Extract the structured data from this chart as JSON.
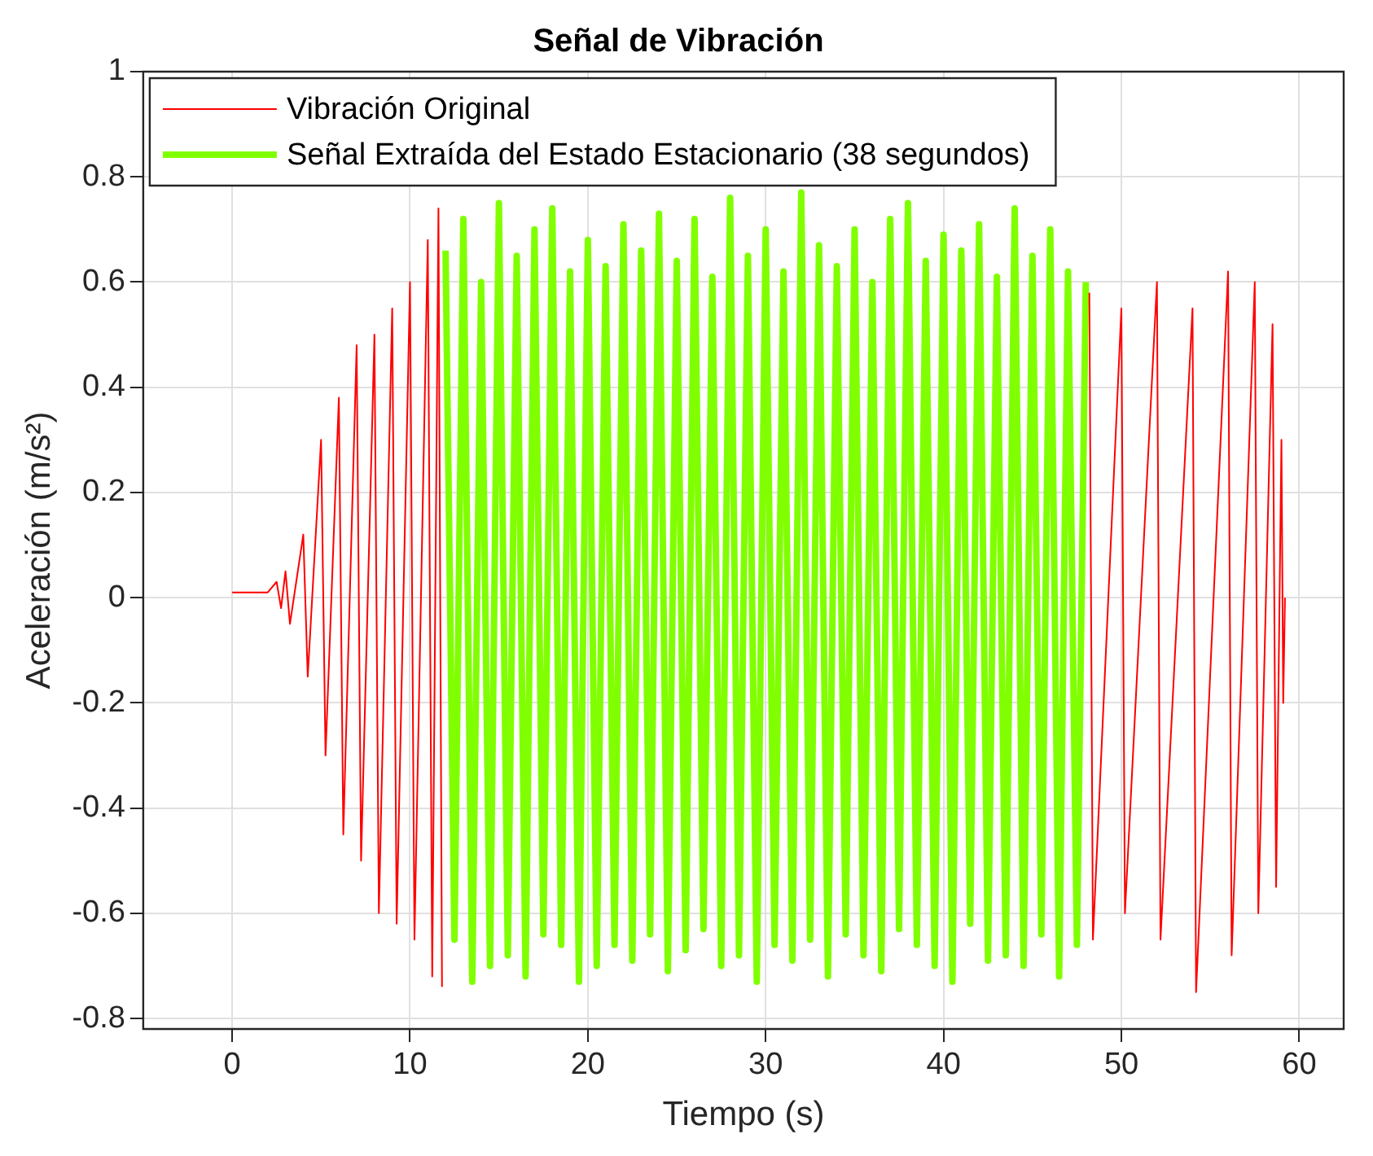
{
  "chart_data": {
    "type": "line",
    "title": "Señal de Vibración",
    "xlabel": "Tiempo (s)",
    "ylabel": "Aceleración (m/s²)",
    "xlim": [
      -5,
      62.5
    ],
    "xticks": [
      0,
      10,
      20,
      30,
      40,
      50,
      60
    ],
    "ylim": [
      -0.82,
      1
    ],
    "yticks": [
      -0.8,
      -0.6,
      -0.4,
      -0.2,
      0,
      0.2,
      0.4,
      0.6,
      0.8,
      1
    ],
    "grid": true,
    "legend": "top left",
    "marker": "none",
    "line_style": "solid",
    "series": [
      {
        "name": "Vibración Original",
        "color": "#ff0000",
        "x": [
          0,
          2,
          2.5,
          2.75,
          3,
          3.25,
          4,
          4.25,
          5,
          5.25,
          6,
          6.25,
          7,
          7.25,
          8,
          8.25,
          9,
          9.25,
          10,
          10.25,
          11,
          11.25,
          11.6,
          11.8,
          30,
          48.2,
          48.4,
          50,
          50.2,
          52,
          52.2,
          54,
          54.2,
          56,
          56.2,
          57.5,
          57.7,
          58.5,
          58.7,
          59,
          59.1,
          59.2
        ],
        "values": [
          0.01,
          0.01,
          0.03,
          -0.02,
          0.05,
          -0.05,
          0.12,
          -0.15,
          0.3,
          -0.3,
          0.38,
          -0.45,
          0.48,
          -0.5,
          0.5,
          -0.6,
          0.55,
          -0.62,
          0.6,
          -0.65,
          0.68,
          -0.72,
          0.74,
          -0.74,
          null,
          0.58,
          -0.65,
          0.55,
          -0.6,
          0.6,
          -0.65,
          0.55,
          -0.75,
          0.62,
          -0.68,
          0.6,
          -0.6,
          0.52,
          -0.55,
          0.3,
          -0.2,
          0
        ]
      },
      {
        "name": "Señal Extraída del Estado Estacionario (38 segundos)",
        "color": "#80ff00",
        "x": [
          12,
          12.5,
          13,
          13.5,
          14,
          14.5,
          15,
          15.5,
          16,
          16.5,
          17,
          17.5,
          18,
          18.5,
          19,
          19.5,
          20,
          20.5,
          21,
          21.5,
          22,
          22.5,
          23,
          23.5,
          24,
          24.5,
          25,
          25.5,
          26,
          26.5,
          27,
          27.5,
          28,
          28.5,
          29,
          29.5,
          30,
          30.5,
          31,
          31.5,
          32,
          32.5,
          33,
          33.5,
          34,
          34.5,
          35,
          35.5,
          36,
          36.5,
          37,
          37.5,
          38,
          38.5,
          39,
          39.5,
          40,
          40.5,
          41,
          41.5,
          42,
          42.5,
          43,
          43.5,
          44,
          44.5,
          45,
          45.5,
          46,
          46.5,
          47,
          47.5,
          48
        ],
        "values": [
          0.66,
          -0.65,
          0.72,
          -0.73,
          0.6,
          -0.7,
          0.75,
          -0.68,
          0.65,
          -0.72,
          0.7,
          -0.64,
          0.74,
          -0.66,
          0.62,
          -0.73,
          0.68,
          -0.7,
          0.63,
          -0.66,
          0.71,
          -0.69,
          0.66,
          -0.64,
          0.73,
          -0.71,
          0.64,
          -0.67,
          0.72,
          -0.63,
          0.61,
          -0.7,
          0.76,
          -0.68,
          0.65,
          -0.73,
          0.7,
          -0.66,
          0.62,
          -0.69,
          0.77,
          -0.65,
          0.67,
          -0.72,
          0.63,
          -0.64,
          0.7,
          -0.68,
          0.6,
          -0.71,
          0.72,
          -0.63,
          0.75,
          -0.66,
          0.64,
          -0.7,
          0.69,
          -0.73,
          0.66,
          -0.62,
          0.71,
          -0.69,
          0.61,
          -0.68,
          0.74,
          -0.7,
          0.65,
          -0.64,
          0.7,
          -0.72,
          0.62,
          -0.66,
          0.6
        ]
      }
    ]
  }
}
